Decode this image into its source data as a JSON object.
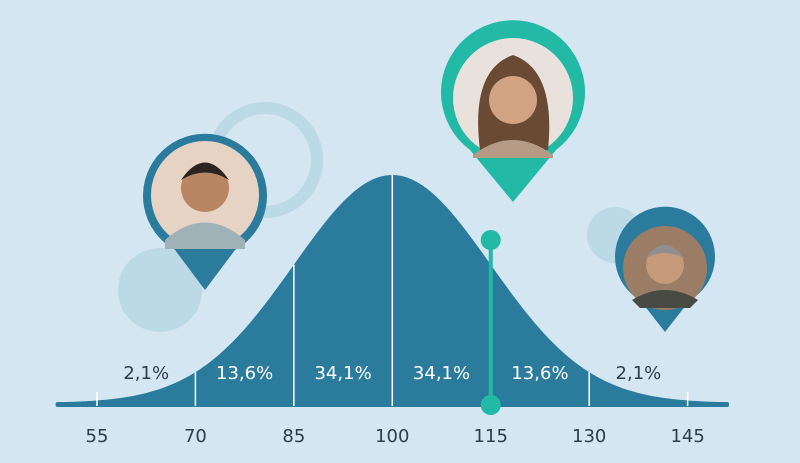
{
  "chart_data": {
    "type": "bell",
    "values": [
      2.1,
      13.6,
      34.1,
      34.1,
      13.6,
      2.1
    ],
    "value_labels": [
      "2,1%",
      "13,6%",
      "34,1%",
      "34,1%",
      "13,6%",
      "2,1%"
    ],
    "xlim": [
      49,
      151
    ],
    "xticks": [
      55,
      70,
      85,
      100,
      115,
      130,
      145
    ],
    "color": "#2b7b9d",
    "highlight": 115,
    "highlight_color": "#22b9a5"
  }
}
